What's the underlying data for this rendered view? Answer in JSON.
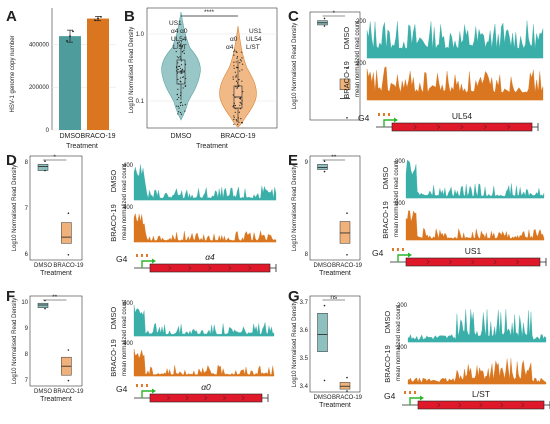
{
  "colors": {
    "dmso": "#4e9c9c",
    "dmso_fill": "#8fc0c0",
    "braco": "#d9761f",
    "braco_fill": "#f0b27a",
    "trace_dmso": "#3aaea8",
    "trace_braco": "#d9761f",
    "gene": "#e0192a",
    "tss": "#2ab52a",
    "g4": "#e07a2a"
  },
  "chart_data": [
    {
      "panel": "A",
      "type": "bar",
      "title": "",
      "categories": [
        "DMSO",
        "BRACO-19"
      ],
      "values": [
        438000,
        520000
      ],
      "errors": [
        28000,
        10000
      ],
      "ylabel": "HSV-1 genome copy number",
      "xlabel": "Treatment",
      "yticks": [
        "0",
        "200000",
        "400000"
      ],
      "ylim": [
        0,
        560000
      ]
    },
    {
      "panel": "B",
      "type": "violin",
      "title": "",
      "categories": [
        "DMSO",
        "BRACO-19"
      ],
      "ylabel": "Log10 Normalised Read Density",
      "xlabel": "Treatment",
      "yticks": [
        "0.1",
        "1.0"
      ],
      "ylog": true,
      "ylim": [
        0.035,
        3.0
      ],
      "significance": "****",
      "labels_dmso": [
        "US1",
        "α4 α0",
        "UL54",
        "L/ST"
      ],
      "labels_braco": [
        "US1",
        "α0",
        "UL54",
        "α4",
        "L/ST"
      ]
    },
    {
      "panel": "C",
      "type": "box",
      "title": "",
      "ylabel": "Log10 Normalised Read Density",
      "significance": "*",
      "track_labels": [
        "DMSO",
        "BRACO-19"
      ],
      "ytrack": "mean normalized read count",
      "track_max": [
        "200",
        "200"
      ],
      "g4_label": "G4",
      "gene": "UL54"
    },
    {
      "panel": "D",
      "type": "box",
      "title": "",
      "ylabel": "Log10 Normalised Read Density",
      "xlabel": "Treatment",
      "categories": [
        "DMSO",
        "BRACO-19"
      ],
      "yticks": [
        "6",
        "7",
        "8"
      ],
      "significance": "*",
      "track_labels": [
        "DMSO",
        "BRACO-19"
      ],
      "ytrack": "mean normalized read count",
      "track_max": [
        "400",
        "400"
      ],
      "g4_label": "G4",
      "gene": "α4"
    },
    {
      "panel": "E",
      "type": "box",
      "title": "",
      "ylabel": "Log10 Normalised Read Density",
      "xlabel": "Treatment",
      "categories": [
        "DMSO",
        "BRACO-19"
      ],
      "yticks": [
        "8",
        "9"
      ],
      "significance": "**",
      "track_labels": [
        "DMSO",
        "BRACO-19"
      ],
      "ytrack": "mean normalized read count",
      "track_max": [
        "800",
        "800"
      ],
      "g4_label": "G4",
      "gene": "US1"
    },
    {
      "panel": "F",
      "type": "box",
      "title": "",
      "ylabel": "Log10 Normalised Read Density",
      "xlabel": "Treatment",
      "categories": [
        "DMSO",
        "BRACO-19"
      ],
      "yticks": [
        "7",
        "8",
        "9",
        "10"
      ],
      "significance": "**",
      "track_labels": [
        "DMSO",
        "BRACO-19"
      ],
      "ytrack": "mean normalized read count",
      "track_max": [
        "400",
        "400"
      ],
      "g4_label": "G4",
      "gene": "α0"
    },
    {
      "panel": "G",
      "type": "box",
      "title": "",
      "ylabel": "Log10 Normalised Read Density",
      "xlabel": "Treatment",
      "categories": [
        "DMSO",
        "BRACO-19"
      ],
      "yticks": [
        "3.4",
        "3.5",
        "3.6",
        "3.7"
      ],
      "significance": "ns",
      "track_labels": [
        "DMSO",
        "BRACO-19"
      ],
      "ytrack": "mean normalized read count",
      "track_max": [
        "200",
        "200"
      ],
      "g4_label": "G4",
      "gene": "L/ST"
    }
  ]
}
